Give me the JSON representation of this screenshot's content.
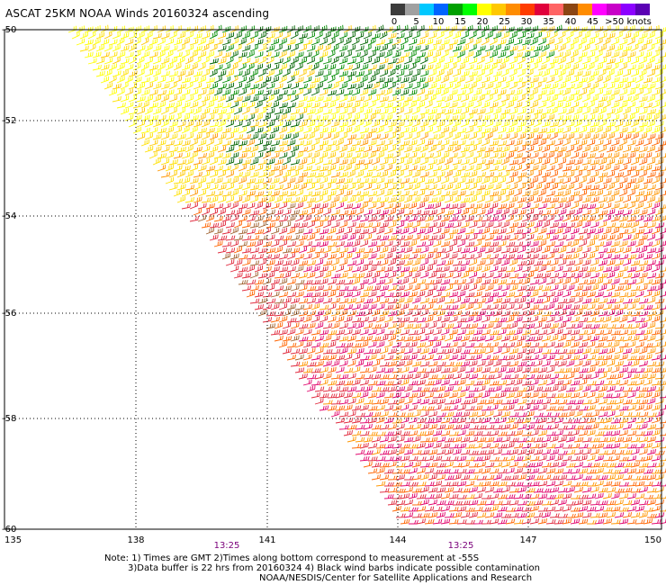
{
  "title": "ASCAT 25KM NOAA Winds 20160324 ascending",
  "colorbar": {
    "colors": [
      "#3c3c3c",
      "#a0a0a0",
      "#00c8ff",
      "#0064ff",
      "#00a000",
      "#00ff00",
      "#ffff00",
      "#ffc800",
      "#ff8c00",
      "#ff3c00",
      "#e0003c",
      "#ff6464",
      "#8b4513",
      "#ff8c00",
      "#ff00ff",
      "#c800c8",
      "#8c00ff",
      "#5a00b4"
    ],
    "labels": [
      "0",
      "5",
      "10",
      "15",
      "20",
      "25",
      "30",
      "35",
      "40",
      "45",
      ">50 knots"
    ]
  },
  "map": {
    "lat_labels": [
      "-50",
      "-52",
      "-54",
      "-56",
      "-58",
      "-60"
    ],
    "lon_labels": [
      "135",
      "138",
      "141",
      "144",
      "147",
      "150"
    ],
    "time_labels": [
      "13:25",
      "13:25"
    ],
    "lat_range": [
      -60,
      -50
    ],
    "lon_range": [
      135,
      150
    ],
    "barb_colors": [
      "#ffff00",
      "#ffe000",
      "#ffc800",
      "#ff9600",
      "#ff6400",
      "#e0283c",
      "#e0006a",
      "#a06432",
      "#008c00",
      "#006400",
      "#0000c8"
    ]
  },
  "notes": {
    "line1": "Note: 1) Times are GMT 2)Times along bottom correspond to measurement at -55S",
    "line2": "3)Data buffer is 22 hrs from 20160324 4) Black wind barbs indicate possible contamination",
    "line3": "NOAA/NESDIS/Center for Satellite Applications and Research"
  }
}
